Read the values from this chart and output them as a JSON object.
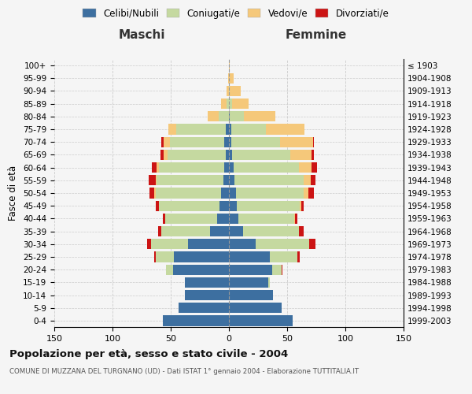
{
  "age_groups": [
    "0-4",
    "5-9",
    "10-14",
    "15-19",
    "20-24",
    "25-29",
    "30-34",
    "35-39",
    "40-44",
    "45-49",
    "50-54",
    "55-59",
    "60-64",
    "65-69",
    "70-74",
    "75-79",
    "80-84",
    "85-89",
    "90-94",
    "95-99",
    "100+"
  ],
  "birth_years": [
    "1999-2003",
    "1994-1998",
    "1989-1993",
    "1984-1988",
    "1979-1983",
    "1974-1978",
    "1969-1973",
    "1964-1968",
    "1959-1963",
    "1954-1958",
    "1949-1953",
    "1944-1948",
    "1939-1943",
    "1934-1938",
    "1929-1933",
    "1924-1928",
    "1919-1923",
    "1914-1918",
    "1909-1913",
    "1904-1908",
    "≤ 1903"
  ],
  "males": {
    "celibe": [
      57,
      43,
      38,
      38,
      48,
      47,
      35,
      16,
      10,
      8,
      7,
      5,
      4,
      3,
      4,
      3,
      0,
      0,
      0,
      0,
      0
    ],
    "coniugato": [
      0,
      0,
      0,
      0,
      6,
      16,
      32,
      42,
      45,
      52,
      56,
      57,
      56,
      50,
      47,
      42,
      9,
      2,
      0,
      0,
      0
    ],
    "vedovo": [
      0,
      0,
      0,
      0,
      0,
      0,
      0,
      0,
      0,
      0,
      1,
      1,
      2,
      3,
      5,
      7,
      9,
      5,
      2,
      1,
      0
    ],
    "divorziato": [
      0,
      0,
      0,
      0,
      0,
      1,
      3,
      3,
      2,
      3,
      4,
      6,
      4,
      3,
      2,
      0,
      0,
      0,
      0,
      0,
      0
    ]
  },
  "females": {
    "nubile": [
      55,
      45,
      38,
      34,
      37,
      35,
      23,
      12,
      8,
      7,
      6,
      5,
      4,
      3,
      2,
      2,
      1,
      0,
      0,
      0,
      0
    ],
    "coniugata": [
      0,
      0,
      0,
      1,
      8,
      24,
      46,
      48,
      48,
      54,
      58,
      59,
      56,
      50,
      42,
      30,
      12,
      3,
      1,
      0,
      0
    ],
    "vedova": [
      0,
      0,
      0,
      0,
      0,
      0,
      0,
      0,
      1,
      1,
      4,
      6,
      11,
      18,
      28,
      33,
      27,
      14,
      9,
      4,
      1
    ],
    "divorziata": [
      0,
      0,
      0,
      0,
      1,
      2,
      5,
      4,
      2,
      2,
      5,
      4,
      5,
      2,
      1,
      0,
      0,
      0,
      0,
      0,
      0
    ]
  },
  "colors": {
    "celibe": "#3d6fa0",
    "coniugato": "#c5d9a0",
    "vedovo": "#f5c87a",
    "divorziato": "#cc1414"
  },
  "xlim": 150,
  "title": "Popolazione per età, sesso e stato civile - 2004",
  "subtitle": "COMUNE DI MUZZANA DEL TURGNANO (UD) - Dati ISTAT 1° gennaio 2004 - Elaborazione TUTTITALIA.IT",
  "legend_labels": [
    "Celibi/Nubili",
    "Coniugati/e",
    "Vedovi/e",
    "Divorziati/e"
  ],
  "xlabel_left": "Maschi",
  "xlabel_right": "Femmine",
  "ylabel_left": "Fasce di età",
  "bg_color": "#f5f5f5",
  "grid_color": "#cccccc"
}
